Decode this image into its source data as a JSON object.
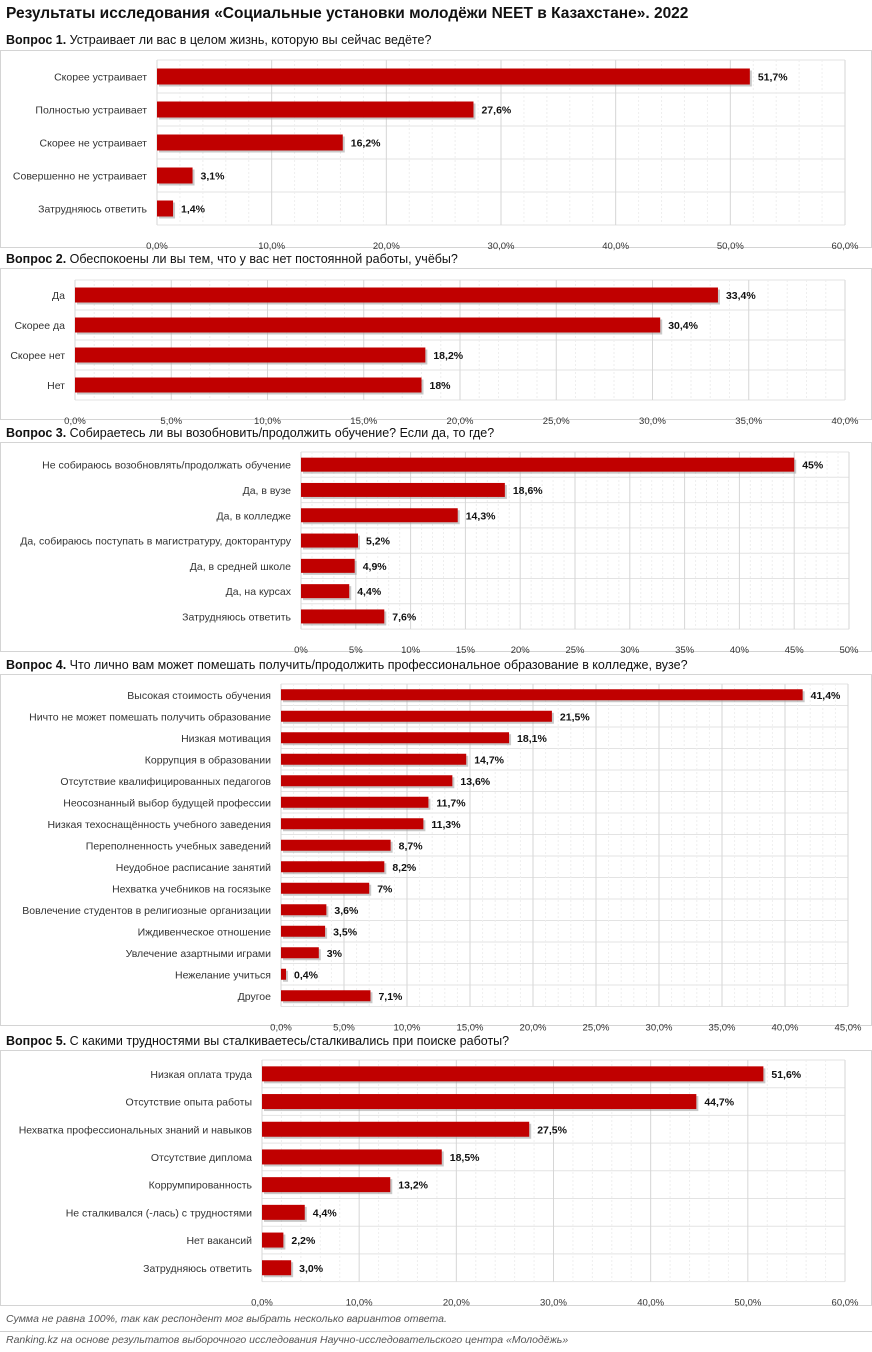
{
  "header": {
    "title": "Результаты исследования «Социальные установки молодёжи NEET в Казахстане». 2022"
  },
  "colors": {
    "bar": "#c00000",
    "bar_shadow": "#9c9c9c",
    "grid": "#e3e3e3",
    "frame": "#d4d4d4"
  },
  "questions": [
    {
      "num": "Вопрос 1.",
      "text": "Устраивает ли вас в целом жизнь, которую вы сейчас ведёте?"
    },
    {
      "num": "Вопрос 2.",
      "text": "Обеспокоены ли вы тем, что у вас нет постоянной работы, учёбы?"
    },
    {
      "num": "Вопрос 3.",
      "text": "Собираетесь ли вы возобновить/продолжить обучение? Если да, то где?"
    },
    {
      "num": "Вопрос 4.",
      "text": "Что лично вам может помешать получить/продолжить профессиональное образование в колледже, вузе?"
    },
    {
      "num": "Вопрос 5.",
      "text": "С какими трудностями вы сталкиваетесь/сталкивались при поиске работы?"
    }
  ],
  "chart_data": [
    {
      "type": "bar",
      "orientation": "horizontal",
      "categories": [
        "Скорее устраивает",
        "Полностью устраивает",
        "Скорее не устраивает",
        "Совершенно не устраивает",
        "Затрудняюсь ответить"
      ],
      "values": [
        51.7,
        27.6,
        16.2,
        3.1,
        1.4
      ],
      "value_labels": [
        "51,7%",
        "27,6%",
        "16,2%",
        "3,1%",
        "1,4%"
      ],
      "xlim": [
        0,
        60
      ],
      "ticks": [
        "0,0%",
        "10,0%",
        "20,0%",
        "30,0%",
        "40,0%",
        "50,0%",
        "60,0%"
      ],
      "grid": true
    },
    {
      "type": "bar",
      "orientation": "horizontal",
      "categories": [
        "Да",
        "Скорее да",
        "Скорее нет",
        "Нет"
      ],
      "values": [
        33.4,
        30.4,
        18.2,
        18
      ],
      "value_labels": [
        "33,4%",
        "30,4%",
        "18,2%",
        "18%"
      ],
      "xlim": [
        0,
        40
      ],
      "ticks": [
        "0,0%",
        "5,0%",
        "10,0%",
        "15,0%",
        "20,0%",
        "25,0%",
        "30,0%",
        "35,0%",
        "40,0%"
      ],
      "grid": true
    },
    {
      "type": "bar",
      "orientation": "horizontal",
      "categories": [
        "Не собираюсь возобновлять/продолжать обучение",
        "Да, в вузе",
        "Да, в колледже",
        "Да, собираюсь поступать в магистратуру, докторантуру",
        "Да, в средней школе",
        "Да, на курсах",
        "Затрудняюсь ответить"
      ],
      "values": [
        45,
        18.6,
        14.3,
        5.2,
        4.9,
        4.4,
        7.6
      ],
      "value_labels": [
        "45%",
        "18,6%",
        "14,3%",
        "5,2%",
        "4,9%",
        "4,4%",
        "7,6%"
      ],
      "xlim": [
        0,
        50
      ],
      "ticks": [
        "0%",
        "5%",
        "10%",
        "15%",
        "20%",
        "25%",
        "30%",
        "35%",
        "40%",
        "45%",
        "50%"
      ],
      "grid": true
    },
    {
      "type": "bar",
      "orientation": "horizontal",
      "categories": [
        "Высокая стоимость обучения",
        "Ничто не может помешать получить образование",
        "Низкая мотивация",
        "Коррупция в образовании",
        "Отсутствие квалифицированных педагогов",
        "Неосознанный выбор будущей профессии",
        "Низкая техоснащённость учебного заведения",
        "Переполненность учебных заведений",
        "Неудобное расписание занятий",
        "Нехватка учебников на госязыке",
        "Вовлечение студентов в религиозные организации",
        "Иждивенческое отношение",
        "Увлечение азартными играми",
        "Нежелание учиться",
        "Другое"
      ],
      "values": [
        41.4,
        21.5,
        18.1,
        14.7,
        13.6,
        11.7,
        11.3,
        8.7,
        8.2,
        7,
        3.6,
        3.5,
        3,
        0.4,
        7.1
      ],
      "value_labels": [
        "41,4%",
        "21,5%",
        "18,1%",
        "14,7%",
        "13,6%",
        "11,7%",
        "11,3%",
        "8,7%",
        "8,2%",
        "7%",
        "3,6%",
        "3,5%",
        "3%",
        "0,4%",
        "7,1%"
      ],
      "xlim": [
        0,
        45
      ],
      "ticks": [
        "0,0%",
        "5,0%",
        "10,0%",
        "15,0%",
        "20,0%",
        "25,0%",
        "30,0%",
        "35,0%",
        "40,0%",
        "45,0%"
      ],
      "grid": true
    },
    {
      "type": "bar",
      "orientation": "horizontal",
      "categories": [
        "Низкая оплата труда",
        "Отсутствие опыта работы",
        "Нехватка профессиональных знаний и навыков",
        "Отсутствие диплома",
        "Коррумпированность",
        "Не сталкивался (-лась) с трудностями",
        "Нет вакансий",
        "Затрудняюсь ответить"
      ],
      "values": [
        51.6,
        44.7,
        27.5,
        18.5,
        13.2,
        4.4,
        2.2,
        3.0
      ],
      "value_labels": [
        "51,6%",
        "44,7%",
        "27,5%",
        "18,5%",
        "13,2%",
        "4,4%",
        "2,2%",
        "3,0%"
      ],
      "xlim": [
        0,
        60
      ],
      "ticks": [
        "0,0%",
        "10,0%",
        "20,0%",
        "30,0%",
        "40,0%",
        "50,0%",
        "60,0%"
      ],
      "grid": true
    }
  ],
  "footer": {
    "note": "Сумма не равна 100%, так как респондент мог выбрать несколько вариантов ответа.",
    "source": "Ranking.kz на основе результатов выборочного исследования Научно-исследовательского центра «Молодёжь»"
  }
}
